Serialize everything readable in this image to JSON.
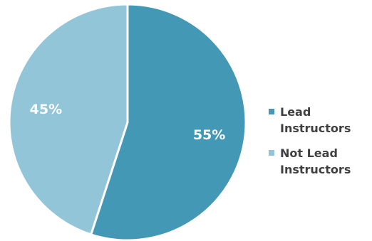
{
  "chart_data": {
    "type": "pie",
    "categories": [
      "Lead Instructors",
      "Not Lead Instructors"
    ],
    "values": [
      55,
      45
    ],
    "data_labels": [
      "55%",
      "45%"
    ],
    "colors": [
      "#4298b5",
      "#92c5d8"
    ],
    "start_angle_deg": 0,
    "direction": "clockwise",
    "legend_position": "right",
    "legend": [
      {
        "label": "Lead Instructors",
        "line1": "Lead",
        "line2": "Instructors",
        "color": "#4298b5"
      },
      {
        "label": "Not Lead Instructors",
        "line1": "Not Lead",
        "line2": "Instructors",
        "color": "#92c5d8"
      }
    ]
  }
}
